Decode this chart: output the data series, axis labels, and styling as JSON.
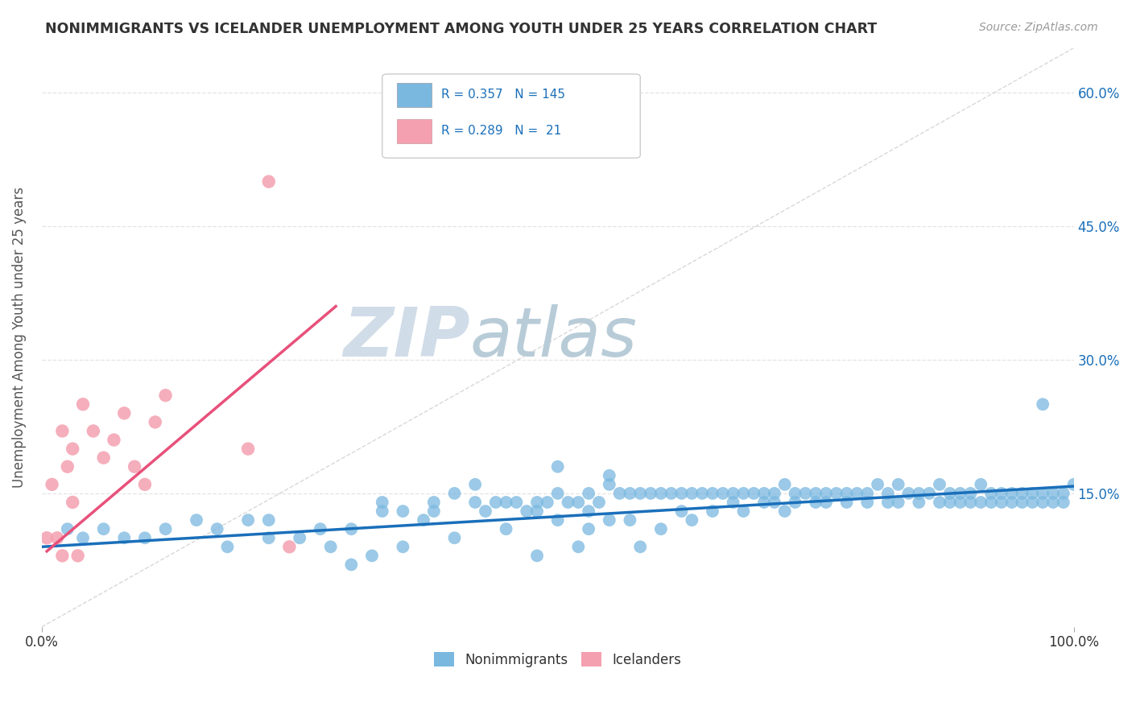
{
  "title": "NONIMMIGRANTS VS ICELANDER UNEMPLOYMENT AMONG YOUTH UNDER 25 YEARS CORRELATION CHART",
  "source": "Source: ZipAtlas.com",
  "ylabel": "Unemployment Among Youth under 25 years",
  "blue_color": "#7ab8e0",
  "pink_color": "#f4a0b0",
  "blue_line_color": "#1a6fba",
  "pink_line_color": "#e8507a",
  "dashed_line_color": "#c8c8c8",
  "title_color": "#333333",
  "source_color": "#999999",
  "legend_text_color": "#1a6fba",
  "background_color": "#ffffff",
  "grid_color": "#dddddd",
  "watermark_zip": "ZIP",
  "watermark_atlas": "atlas",
  "watermark_color_zip": "#d0dce8",
  "watermark_color_atlas": "#b8ccd8",
  "xlim": [
    0.0,
    1.0
  ],
  "ylim": [
    0.0,
    0.65
  ],
  "blue_trend_x": [
    0.0,
    1.0
  ],
  "blue_trend_y": [
    0.09,
    0.158
  ],
  "pink_trend_x": [
    0.005,
    0.285
  ],
  "pink_trend_y": [
    0.085,
    0.36
  ],
  "diag_line_x": [
    0.0,
    1.0
  ],
  "diag_line_y": [
    0.0,
    0.65
  ],
  "blue_scatter_x": [
    0.025,
    0.04,
    0.06,
    0.08,
    0.1,
    0.12,
    0.15,
    0.17,
    0.2,
    0.22,
    0.25,
    0.27,
    0.3,
    0.3,
    0.32,
    0.33,
    0.35,
    0.35,
    0.37,
    0.38,
    0.4,
    0.4,
    0.42,
    0.43,
    0.44,
    0.45,
    0.45,
    0.46,
    0.47,
    0.48,
    0.48,
    0.49,
    0.5,
    0.5,
    0.51,
    0.52,
    0.52,
    0.53,
    0.53,
    0.54,
    0.55,
    0.55,
    0.56,
    0.57,
    0.57,
    0.58,
    0.58,
    0.59,
    0.6,
    0.6,
    0.61,
    0.62,
    0.62,
    0.63,
    0.63,
    0.64,
    0.65,
    0.65,
    0.66,
    0.67,
    0.67,
    0.68,
    0.68,
    0.69,
    0.7,
    0.7,
    0.71,
    0.71,
    0.72,
    0.72,
    0.73,
    0.73,
    0.74,
    0.75,
    0.75,
    0.76,
    0.76,
    0.77,
    0.78,
    0.78,
    0.79,
    0.8,
    0.8,
    0.81,
    0.82,
    0.82,
    0.83,
    0.83,
    0.84,
    0.85,
    0.85,
    0.86,
    0.87,
    0.87,
    0.88,
    0.88,
    0.89,
    0.89,
    0.9,
    0.9,
    0.91,
    0.91,
    0.92,
    0.92,
    0.93,
    0.93,
    0.94,
    0.94,
    0.95,
    0.95,
    0.96,
    0.96,
    0.97,
    0.97,
    0.98,
    0.98,
    0.99,
    0.99,
    1.0,
    0.28,
    0.33,
    0.38,
    0.42,
    0.5,
    0.55,
    0.18,
    0.22,
    0.48,
    0.53,
    0.97
  ],
  "blue_scatter_y": [
    0.11,
    0.1,
    0.11,
    0.1,
    0.1,
    0.11,
    0.12,
    0.11,
    0.12,
    0.12,
    0.1,
    0.11,
    0.11,
    0.07,
    0.08,
    0.13,
    0.09,
    0.13,
    0.12,
    0.13,
    0.15,
    0.1,
    0.14,
    0.13,
    0.14,
    0.14,
    0.11,
    0.14,
    0.13,
    0.14,
    0.08,
    0.14,
    0.15,
    0.12,
    0.14,
    0.14,
    0.09,
    0.15,
    0.11,
    0.14,
    0.16,
    0.12,
    0.15,
    0.15,
    0.12,
    0.15,
    0.09,
    0.15,
    0.15,
    0.11,
    0.15,
    0.15,
    0.13,
    0.15,
    0.12,
    0.15,
    0.15,
    0.13,
    0.15,
    0.15,
    0.14,
    0.15,
    0.13,
    0.15,
    0.15,
    0.14,
    0.15,
    0.14,
    0.16,
    0.13,
    0.15,
    0.14,
    0.15,
    0.15,
    0.14,
    0.15,
    0.14,
    0.15,
    0.15,
    0.14,
    0.15,
    0.15,
    0.14,
    0.16,
    0.15,
    0.14,
    0.16,
    0.14,
    0.15,
    0.15,
    0.14,
    0.15,
    0.16,
    0.14,
    0.15,
    0.14,
    0.15,
    0.14,
    0.15,
    0.14,
    0.16,
    0.14,
    0.15,
    0.14,
    0.15,
    0.14,
    0.15,
    0.14,
    0.15,
    0.14,
    0.15,
    0.14,
    0.15,
    0.14,
    0.15,
    0.14,
    0.15,
    0.14,
    0.16,
    0.09,
    0.14,
    0.14,
    0.16,
    0.18,
    0.17,
    0.09,
    0.1,
    0.13,
    0.13,
    0.25
  ],
  "pink_scatter_x": [
    0.005,
    0.01,
    0.015,
    0.02,
    0.02,
    0.025,
    0.03,
    0.03,
    0.035,
    0.04,
    0.05,
    0.06,
    0.07,
    0.08,
    0.09,
    0.1,
    0.11,
    0.12,
    0.2,
    0.24,
    0.22
  ],
  "pink_scatter_y": [
    0.1,
    0.16,
    0.1,
    0.22,
    0.08,
    0.18,
    0.2,
    0.14,
    0.08,
    0.25,
    0.22,
    0.19,
    0.21,
    0.24,
    0.18,
    0.16,
    0.23,
    0.26,
    0.2,
    0.09,
    0.5
  ]
}
